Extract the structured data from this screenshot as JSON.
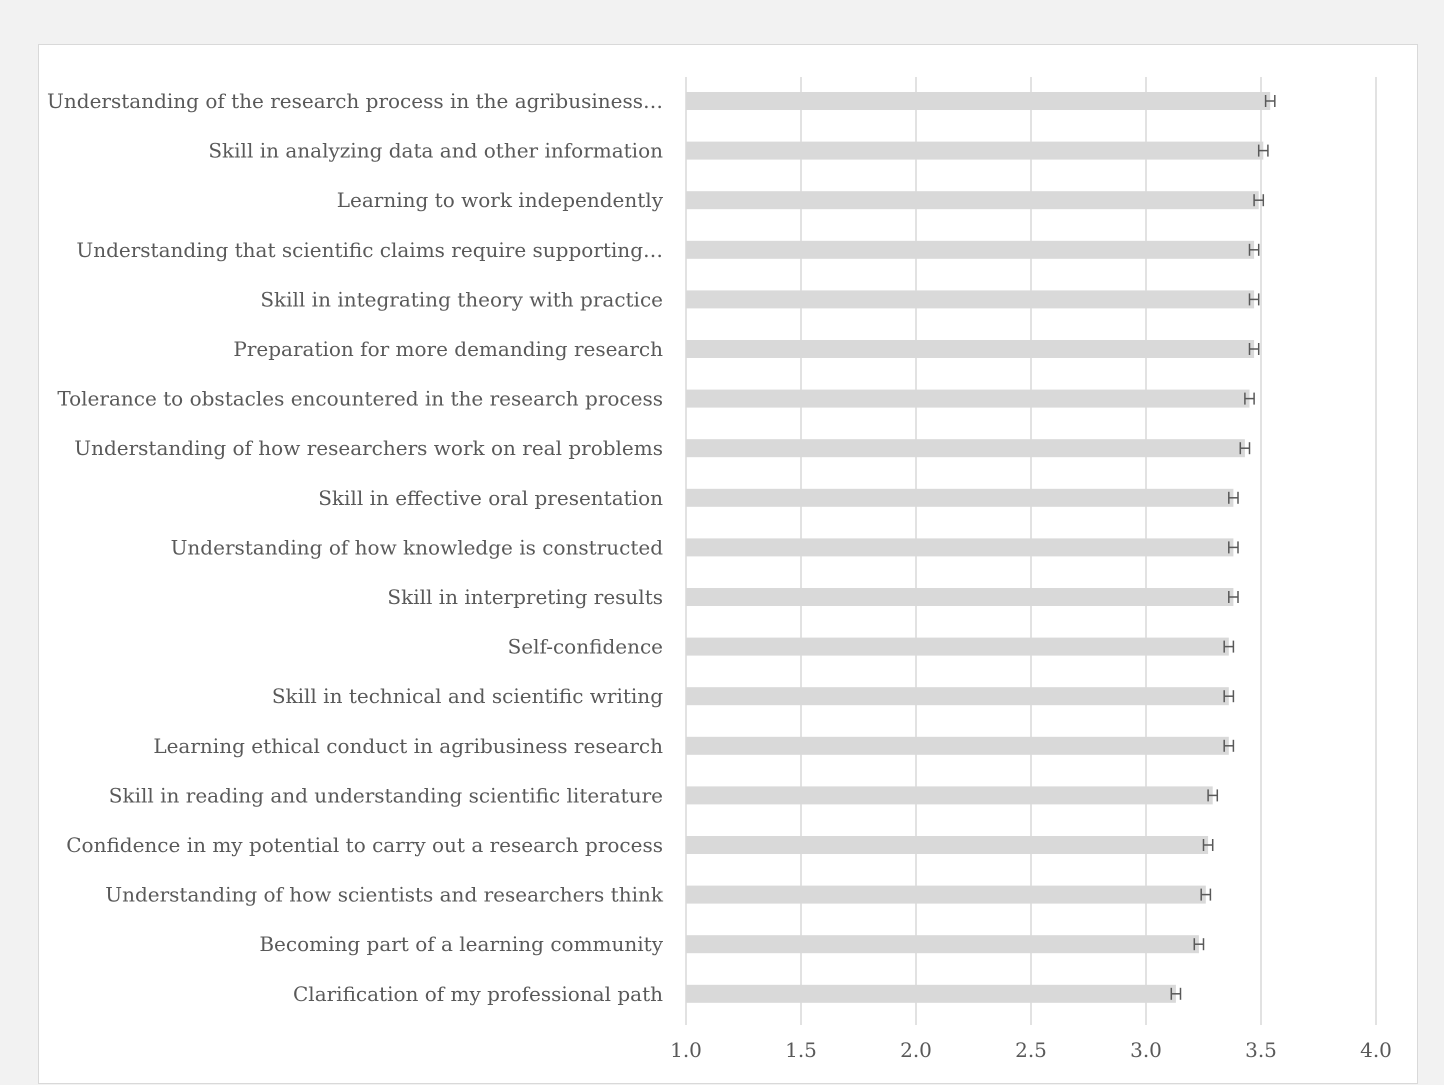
{
  "chart_data": {
    "type": "bar",
    "orientation": "horizontal",
    "categories": [
      "Understanding of the research process in the agribusiness…",
      "Skill in analyzing data and other information",
      "Learning to work independently",
      "Understanding that scientific claims require supporting…",
      "Skill in integrating theory with practice",
      "Preparation for more demanding research",
      "Tolerance to obstacles encountered in the research process",
      "Understanding of how researchers work on real problems",
      "Skill in effective oral presentation",
      "Understanding of how knowledge is constructed",
      "Skill in interpreting results",
      "Self-confidence",
      "Skill in technical and scientific writing",
      "Learning ethical conduct in agribusiness research",
      "Skill in reading and understanding scientific literature",
      "Confidence in my potential to carry out a research process",
      "Understanding of how scientists and researchers think",
      "Becoming part of a learning community",
      "Clarification of my professional path"
    ],
    "values": [
      3.54,
      3.51,
      3.49,
      3.47,
      3.47,
      3.47,
      3.45,
      3.43,
      3.38,
      3.38,
      3.38,
      3.36,
      3.36,
      3.36,
      3.29,
      3.27,
      3.26,
      3.23,
      3.13
    ],
    "errors": [
      0.02,
      0.02,
      0.02,
      0.02,
      0.02,
      0.02,
      0.02,
      0.02,
      0.02,
      0.02,
      0.02,
      0.02,
      0.02,
      0.02,
      0.02,
      0.02,
      0.02,
      0.02,
      0.02
    ],
    "xlim": [
      1.0,
      4.0
    ],
    "xticks": [
      "1.0",
      "1.5",
      "2.0",
      "2.5",
      "3.0",
      "3.5",
      "4.0"
    ],
    "xtick_values": [
      1.0,
      1.5,
      2.0,
      2.5,
      3.0,
      3.5,
      4.0
    ],
    "grid": true,
    "bar_color": "#d9d9d9",
    "error_color": "#595959",
    "grid_color": "#d9d9d9",
    "text_color": "#595959"
  }
}
